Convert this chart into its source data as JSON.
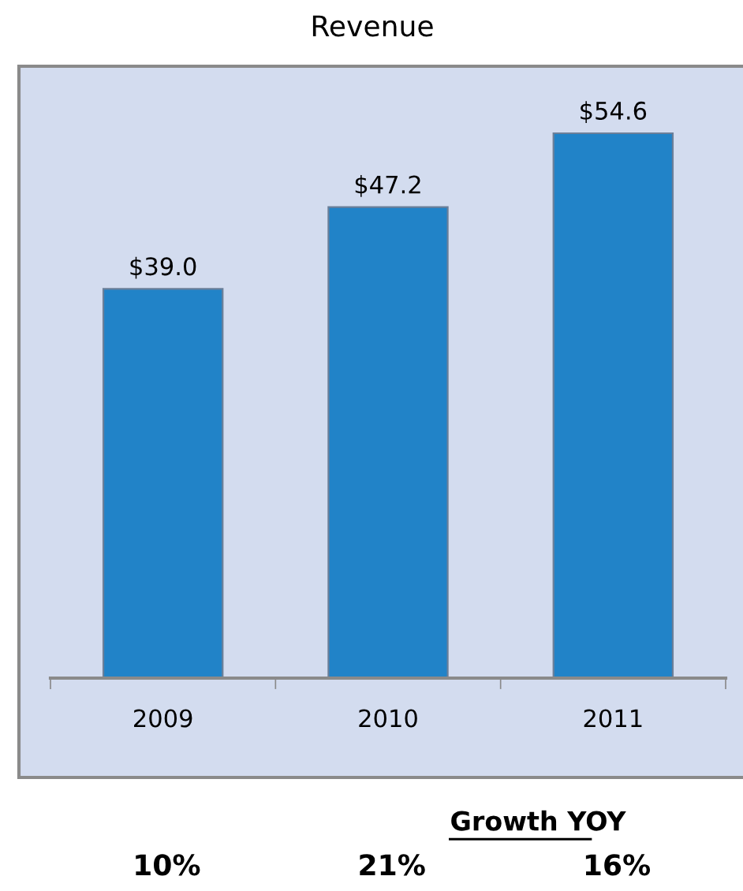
{
  "chart_data": {
    "type": "bar",
    "title": "Revenue",
    "categories": [
      "2009",
      "2010",
      "2011"
    ],
    "values": [
      39.0,
      47.2,
      54.6
    ],
    "color": "#2183c8",
    "value_labels": [
      "$39.0",
      "$47.2",
      "$54.6"
    ],
    "ylim": [
      0,
      61
    ],
    "tick_labels": "x",
    "grid": false,
    "legend": false,
    "annotations": [
      "Growth YOY",
      "10%",
      "21%",
      "16%"
    ]
  }
}
